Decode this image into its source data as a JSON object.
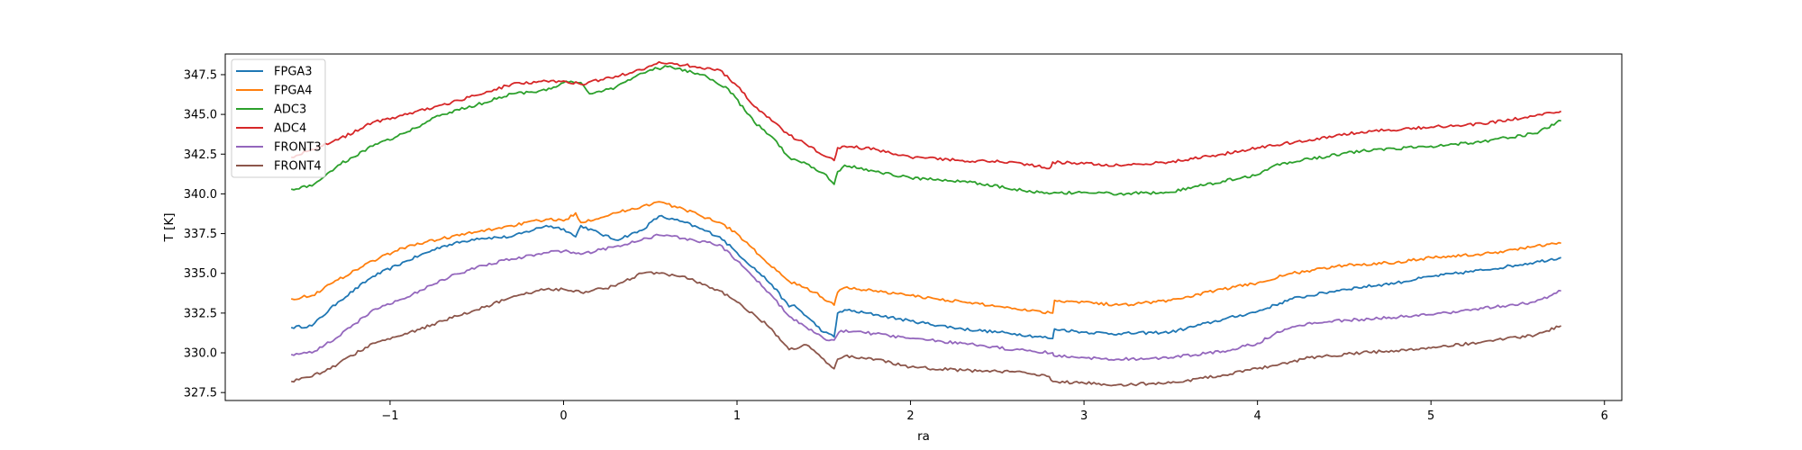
{
  "chart_data": {
    "type": "line",
    "xlabel": "ra",
    "ylabel": "T [K]",
    "xlim": [
      -1.95,
      6.1
    ],
    "ylim": [
      327.0,
      348.8
    ],
    "xticks": [
      -1,
      0,
      1,
      2,
      3,
      4,
      5,
      6
    ],
    "xtick_labels": [
      "−1",
      "0",
      "1",
      "2",
      "3",
      "4",
      "5",
      "6"
    ],
    "yticks": [
      327.5,
      330.0,
      332.5,
      335.0,
      337.5,
      340.0,
      342.5,
      345.0,
      347.5
    ],
    "ytick_labels": [
      "327.5",
      "330.0",
      "332.5",
      "335.0",
      "337.5",
      "340.0",
      "342.5",
      "345.0",
      "347.5"
    ],
    "grid": false,
    "legend_position": "top-left",
    "series": [
      {
        "name": "FPGA3",
        "color": "#1f77b4",
        "x": [
          -1.57,
          -1.45,
          -1.3,
          -1.1,
          -0.9,
          -0.7,
          -0.5,
          -0.3,
          -0.1,
          0.0,
          0.07,
          0.1,
          0.3,
          0.45,
          0.55,
          0.7,
          0.9,
          1.0,
          1.2,
          1.3,
          1.33,
          1.4,
          1.5,
          1.56,
          1.58,
          1.62,
          1.8,
          2.0,
          2.3,
          2.6,
          2.82,
          2.83,
          3.0,
          3.2,
          3.5,
          3.8,
          4.0,
          4.2,
          4.5,
          4.8,
          5.0,
          5.3,
          5.6,
          5.75
        ],
        "y": [
          331.6,
          331.7,
          333.2,
          334.8,
          335.8,
          336.7,
          337.2,
          337.3,
          338.0,
          337.8,
          337.3,
          338.0,
          337.1,
          337.7,
          338.6,
          338.2,
          337.3,
          336.3,
          334.3,
          332.9,
          333.0,
          332.3,
          331.3,
          331.0,
          332.5,
          332.7,
          332.4,
          332.0,
          331.5,
          331.2,
          330.9,
          331.5,
          331.3,
          331.2,
          331.3,
          332.1,
          332.6,
          333.4,
          334.0,
          334.4,
          334.8,
          335.2,
          335.7,
          336.0
        ]
      },
      {
        "name": "FPGA4",
        "color": "#ff7f0e",
        "x": [
          -1.57,
          -1.45,
          -1.3,
          -1.1,
          -0.9,
          -0.7,
          -0.5,
          -0.3,
          -0.1,
          0.0,
          0.07,
          0.1,
          0.3,
          0.45,
          0.55,
          0.7,
          0.9,
          1.0,
          1.2,
          1.3,
          1.45,
          1.56,
          1.58,
          1.62,
          1.8,
          2.0,
          2.3,
          2.6,
          2.82,
          2.83,
          3.0,
          3.2,
          3.5,
          3.8,
          4.0,
          4.2,
          4.5,
          4.8,
          5.0,
          5.3,
          5.6,
          5.75
        ],
        "y": [
          333.4,
          333.6,
          334.6,
          335.8,
          336.7,
          337.2,
          337.6,
          338.0,
          338.4,
          338.3,
          338.8,
          338.2,
          338.8,
          339.2,
          339.5,
          339.0,
          338.2,
          337.5,
          335.4,
          334.5,
          333.8,
          333.0,
          333.8,
          334.1,
          333.9,
          333.6,
          333.2,
          332.8,
          332.5,
          333.3,
          333.2,
          333.0,
          333.3,
          334.0,
          334.4,
          335.0,
          335.5,
          335.7,
          336.0,
          336.2,
          336.7,
          336.9
        ]
      },
      {
        "name": "ADC3",
        "color": "#2ca02c",
        "x": [
          -1.57,
          -1.45,
          -1.3,
          -1.1,
          -0.9,
          -0.7,
          -0.5,
          -0.3,
          -0.1,
          0.0,
          0.1,
          0.15,
          0.3,
          0.4,
          0.5,
          0.6,
          0.8,
          0.95,
          1.1,
          1.2,
          1.3,
          1.4,
          1.5,
          1.56,
          1.58,
          1.62,
          1.8,
          2.0,
          2.3,
          2.6,
          2.8,
          3.0,
          3.2,
          3.5,
          3.8,
          4.0,
          4.1,
          4.3,
          4.6,
          5.0,
          5.3,
          5.6,
          5.75
        ],
        "y": [
          340.3,
          340.5,
          341.8,
          343.0,
          343.9,
          345.0,
          345.6,
          346.3,
          346.5,
          347.0,
          347.0,
          346.3,
          346.7,
          347.3,
          347.8,
          348.0,
          347.5,
          346.6,
          344.5,
          343.6,
          342.3,
          341.9,
          341.3,
          340.6,
          341.4,
          341.8,
          341.4,
          341.0,
          340.8,
          340.3,
          340.0,
          340.1,
          340.0,
          340.1,
          340.8,
          341.2,
          341.8,
          342.2,
          342.7,
          343.0,
          343.3,
          343.8,
          344.6
        ]
      },
      {
        "name": "ADC4",
        "color": "#d62728",
        "x": [
          -1.57,
          -1.45,
          -1.3,
          -1.1,
          -0.9,
          -0.7,
          -0.5,
          -0.3,
          -0.1,
          0.0,
          0.1,
          0.3,
          0.45,
          0.55,
          0.7,
          0.9,
          1.0,
          1.1,
          1.2,
          1.3,
          1.4,
          1.5,
          1.56,
          1.58,
          1.62,
          1.8,
          2.0,
          2.3,
          2.6,
          2.8,
          2.82,
          3.0,
          3.2,
          3.5,
          3.8,
          4.0,
          4.3,
          4.6,
          5.0,
          5.3,
          5.6,
          5.75
        ],
        "y": [
          342.3,
          342.8,
          343.4,
          344.5,
          345.0,
          345.6,
          346.2,
          346.9,
          347.1,
          347.1,
          346.9,
          347.4,
          347.8,
          348.3,
          348.1,
          347.8,
          346.8,
          345.5,
          344.6,
          343.7,
          343.1,
          342.4,
          342.1,
          342.9,
          343.0,
          342.8,
          342.3,
          342.1,
          342.0,
          341.6,
          342.0,
          341.9,
          341.8,
          342.0,
          342.5,
          342.9,
          343.4,
          343.9,
          344.2,
          344.4,
          344.9,
          345.2
        ]
      },
      {
        "name": "FRONT3",
        "color": "#9467bd",
        "x": [
          -1.57,
          -1.45,
          -1.3,
          -1.1,
          -0.9,
          -0.7,
          -0.5,
          -0.3,
          -0.1,
          0.0,
          0.1,
          0.3,
          0.45,
          0.55,
          0.7,
          0.9,
          1.0,
          1.2,
          1.3,
          1.4,
          1.5,
          1.56,
          1.6,
          1.8,
          2.0,
          2.3,
          2.6,
          2.82,
          2.83,
          3.0,
          3.2,
          3.5,
          3.8,
          4.0,
          4.1,
          4.3,
          4.6,
          5.0,
          5.3,
          5.6,
          5.75
        ],
        "y": [
          329.9,
          330.0,
          331.0,
          332.7,
          333.5,
          334.6,
          335.4,
          335.9,
          336.3,
          336.4,
          336.2,
          336.7,
          337.1,
          337.4,
          337.2,
          336.8,
          335.8,
          333.6,
          332.3,
          331.6,
          330.9,
          330.8,
          331.4,
          331.2,
          330.9,
          330.6,
          330.2,
          330.0,
          329.8,
          329.7,
          329.6,
          329.7,
          330.1,
          330.6,
          331.2,
          331.9,
          332.1,
          332.4,
          332.8,
          333.2,
          333.9
        ]
      },
      {
        "name": "FRONT4",
        "color": "#8c564b",
        "x": [
          -1.57,
          -1.45,
          -1.3,
          -1.1,
          -0.9,
          -0.7,
          -0.5,
          -0.3,
          -0.1,
          0.0,
          0.1,
          0.3,
          0.45,
          0.55,
          0.7,
          0.9,
          1.0,
          1.1,
          1.2,
          1.25,
          1.3,
          1.4,
          1.5,
          1.56,
          1.58,
          1.62,
          1.8,
          2.0,
          2.3,
          2.6,
          2.8,
          2.82,
          3.0,
          3.2,
          3.5,
          3.8,
          4.0,
          4.1,
          4.3,
          4.6,
          5.0,
          5.3,
          5.6,
          5.75
        ],
        "y": [
          328.2,
          328.5,
          329.3,
          330.6,
          331.2,
          332.0,
          332.7,
          333.5,
          334.0,
          334.0,
          333.8,
          334.2,
          335.0,
          335.0,
          334.8,
          333.9,
          333.2,
          332.4,
          331.5,
          330.8,
          330.2,
          330.5,
          329.6,
          329.0,
          329.6,
          329.8,
          329.6,
          329.1,
          328.9,
          328.8,
          328.5,
          328.2,
          328.1,
          328.0,
          328.1,
          328.6,
          329.0,
          329.2,
          329.7,
          330.0,
          330.3,
          330.7,
          331.1,
          331.7
        ]
      }
    ]
  }
}
